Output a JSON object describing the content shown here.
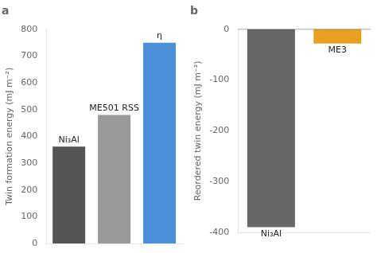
{
  "chart_data": [
    {
      "type": "bar",
      "title": "a",
      "categories": [
        "Ni₃Al",
        "ME501 RSS",
        "η"
      ],
      "values": [
        362,
        480,
        750
      ],
      "colors": [
        "#555555",
        "#999999",
        "#4a90d9"
      ],
      "ylabel": "Twin formation energy (mJ m⁻²)",
      "ylim": [
        0,
        800
      ],
      "yticks": [
        0,
        100,
        200,
        300,
        400,
        500,
        600,
        700,
        800
      ],
      "grid": false,
      "tick_labels": "y"
    },
    {
      "type": "bar",
      "title": "b",
      "categories": [
        "Ni₃Al",
        "ME3"
      ],
      "values": [
        -390,
        -28
      ],
      "colors": [
        "#666666",
        "#e8a020"
      ],
      "ylabel": "Reordered twin energy (mJ m⁻²)",
      "ylim": [
        -400,
        0
      ],
      "yticks": [
        -400,
        -300,
        -200,
        -100,
        0
      ],
      "grid": false,
      "tick_labels": "y"
    }
  ]
}
